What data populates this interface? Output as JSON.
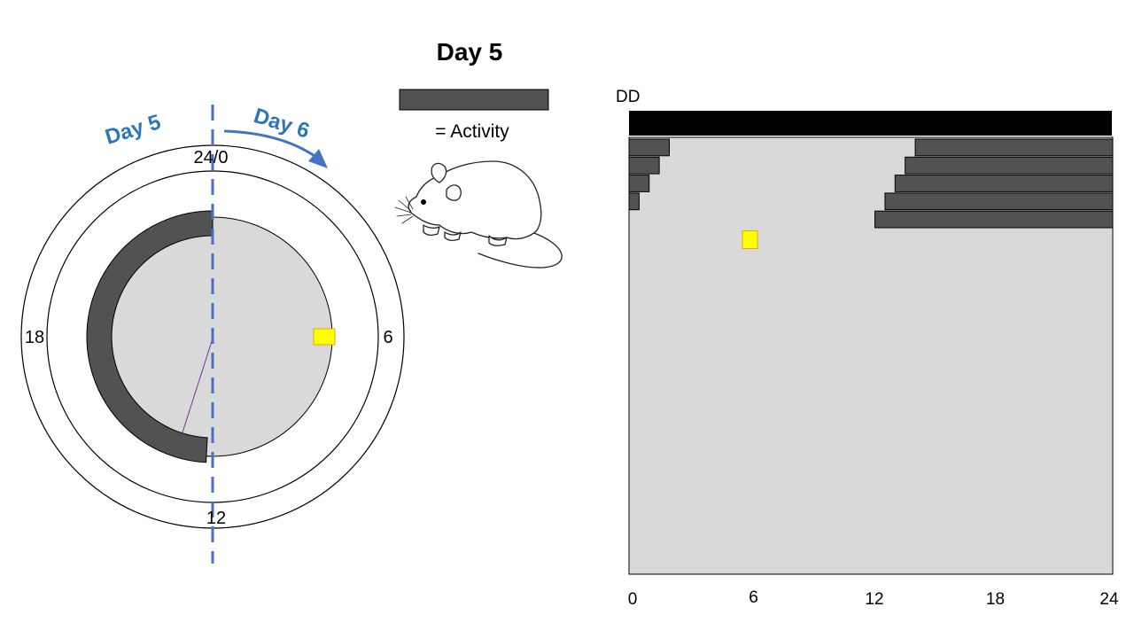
{
  "title": "Day 5",
  "clock": {
    "hour_labels": {
      "top": "24/0",
      "right": "6",
      "bottom": "12",
      "left": "18"
    },
    "day_left_label": "Day 5",
    "day_right_label": "Day 6",
    "activity_onset_hour": 12.2,
    "activity_offset_hour": 24,
    "marker_hour": 6
  },
  "legend": {
    "label": "= Activity"
  },
  "actogram": {
    "condition_label": "DD",
    "x_ticks": [
      "0",
      "6",
      "12",
      "18",
      "24"
    ],
    "x_range": [
      0,
      24
    ],
    "rows": [
      {
        "day": 1,
        "pre_end": 2.0,
        "post_start": 14.2
      },
      {
        "day": 2,
        "pre_end": 1.5,
        "post_start": 13.7
      },
      {
        "day": 3,
        "pre_end": 1.0,
        "post_start": 13.2
      },
      {
        "day": 4,
        "pre_end": 0.5,
        "post_start": 12.7
      },
      {
        "day": 5,
        "pre_end": 0.0,
        "post_start": 12.2
      }
    ],
    "marker": {
      "hour": 6,
      "day": 6
    },
    "total_rows": 25
  },
  "colors": {
    "activity": "#525252",
    "background": "#d9d9d9",
    "dashed_line": "#4472c4",
    "day_label": "#2e75b6",
    "marker_fill": "#ffff00",
    "marker_stroke": "#e6a700",
    "dd_bar": "#000000"
  }
}
